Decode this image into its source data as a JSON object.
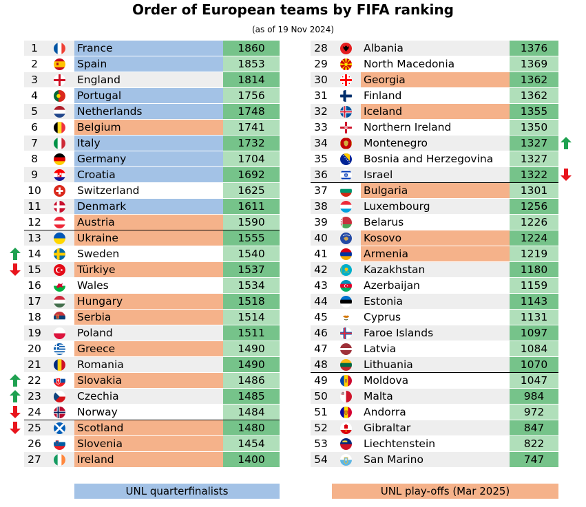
{
  "title": "Order of European teams by FIFA ranking",
  "subtitle": "(as of 19 Nov 2024)",
  "colors": {
    "row_odd": "#eeeeee",
    "row_even": "#ffffff",
    "qf": "#a3c2e6",
    "playoff": "#f5b28a",
    "pts_dark": "#76c38a",
    "pts_light": "#b0dfba",
    "arrow_up": "#1ea150",
    "arrow_down": "#e8141c"
  },
  "teams": [
    {
      "rank": "1",
      "name": "France",
      "points": "1860",
      "status": "qf",
      "flag": "france"
    },
    {
      "rank": "2",
      "name": "Spain",
      "points": "1853",
      "status": "qf",
      "flag": "spain"
    },
    {
      "rank": "3",
      "name": "England",
      "points": "1814",
      "status": "",
      "flag": "england"
    },
    {
      "rank": "4",
      "name": "Portugal",
      "points": "1756",
      "status": "qf",
      "flag": "portugal"
    },
    {
      "rank": "5",
      "name": "Netherlands",
      "points": "1748",
      "status": "qf",
      "flag": "netherlands"
    },
    {
      "rank": "6",
      "name": "Belgium",
      "points": "1741",
      "status": "playoff",
      "flag": "belgium"
    },
    {
      "rank": "7",
      "name": "Italy",
      "points": "1732",
      "status": "qf",
      "flag": "italy"
    },
    {
      "rank": "8",
      "name": "Germany",
      "points": "1704",
      "status": "qf",
      "flag": "germany"
    },
    {
      "rank": "9",
      "name": "Croatia",
      "points": "1692",
      "status": "qf",
      "flag": "croatia"
    },
    {
      "rank": "10",
      "name": "Switzerland",
      "points": "1625",
      "status": "",
      "flag": "switzerland"
    },
    {
      "rank": "11",
      "name": "Denmark",
      "points": "1611",
      "status": "qf",
      "flag": "denmark"
    },
    {
      "rank": "12",
      "name": "Austria",
      "points": "1590",
      "status": "playoff",
      "flag": "austria"
    },
    {
      "rank": "13",
      "name": "Ukraine",
      "points": "1555",
      "status": "playoff",
      "flag": "ukraine"
    },
    {
      "rank": "14",
      "name": "Sweden",
      "points": "1540",
      "status": "",
      "flag": "sweden",
      "arrow": "up"
    },
    {
      "rank": "15",
      "name": "Türkiye",
      "points": "1537",
      "status": "playoff",
      "flag": "turkiye",
      "arrow": "down"
    },
    {
      "rank": "16",
      "name": "Wales",
      "points": "1534",
      "status": "",
      "flag": "wales"
    },
    {
      "rank": "17",
      "name": "Hungary",
      "points": "1518",
      "status": "playoff",
      "flag": "hungary"
    },
    {
      "rank": "18",
      "name": "Serbia",
      "points": "1514",
      "status": "playoff",
      "flag": "serbia"
    },
    {
      "rank": "19",
      "name": "Poland",
      "points": "1511",
      "status": "",
      "flag": "poland"
    },
    {
      "rank": "20",
      "name": "Greece",
      "points": "1490",
      "status": "playoff",
      "flag": "greece"
    },
    {
      "rank": "21",
      "name": "Romania",
      "points": "1490",
      "status": "",
      "flag": "romania"
    },
    {
      "rank": "22",
      "name": "Slovakia",
      "points": "1486",
      "status": "playoff",
      "flag": "slovakia",
      "arrow": "up"
    },
    {
      "rank": "23",
      "name": "Czechia",
      "points": "1485",
      "status": "",
      "flag": "czechia",
      "arrow": "up"
    },
    {
      "rank": "24",
      "name": "Norway",
      "points": "1484",
      "status": "",
      "flag": "norway",
      "arrow": "down"
    },
    {
      "rank": "25",
      "name": "Scotland",
      "points": "1480",
      "status": "playoff",
      "flag": "scotland",
      "arrow": "down"
    },
    {
      "rank": "26",
      "name": "Slovenia",
      "points": "1454",
      "status": "playoff",
      "flag": "slovenia"
    },
    {
      "rank": "27",
      "name": "Ireland",
      "points": "1400",
      "status": "playoff",
      "flag": "ireland"
    },
    {
      "rank": "28",
      "name": "Albania",
      "points": "1376",
      "status": "",
      "flag": "albania"
    },
    {
      "rank": "29",
      "name": "North Macedonia",
      "points": "1369",
      "status": "",
      "flag": "northmacedonia"
    },
    {
      "rank": "30",
      "name": "Georgia",
      "points": "1362",
      "status": "playoff",
      "flag": "georgia"
    },
    {
      "rank": "31",
      "name": "Finland",
      "points": "1362",
      "status": "",
      "flag": "finland"
    },
    {
      "rank": "32",
      "name": "Iceland",
      "points": "1355",
      "status": "playoff",
      "flag": "iceland"
    },
    {
      "rank": "33",
      "name": "Northern Ireland",
      "points": "1350",
      "status": "",
      "flag": "northernireland"
    },
    {
      "rank": "34",
      "name": "Montenegro",
      "points": "1327",
      "status": "",
      "flag": "montenegro",
      "arrow": "up"
    },
    {
      "rank": "35",
      "name": "Bosnia and Herzegovina",
      "points": "1327",
      "status": "",
      "flag": "bosnia"
    },
    {
      "rank": "36",
      "name": "Israel",
      "points": "1322",
      "status": "",
      "flag": "israel",
      "arrow": "down"
    },
    {
      "rank": "37",
      "name": "Bulgaria",
      "points": "1301",
      "status": "playoff",
      "flag": "bulgaria"
    },
    {
      "rank": "38",
      "name": "Luxembourg",
      "points": "1256",
      "status": "",
      "flag": "luxembourg"
    },
    {
      "rank": "39",
      "name": "Belarus",
      "points": "1226",
      "status": "",
      "flag": "belarus"
    },
    {
      "rank": "40",
      "name": "Kosovo",
      "points": "1224",
      "status": "playoff",
      "flag": "kosovo"
    },
    {
      "rank": "41",
      "name": "Armenia",
      "points": "1219",
      "status": "playoff",
      "flag": "armenia"
    },
    {
      "rank": "42",
      "name": "Kazakhstan",
      "points": "1180",
      "status": "",
      "flag": "kazakhstan"
    },
    {
      "rank": "43",
      "name": "Azerbaijan",
      "points": "1159",
      "status": "",
      "flag": "azerbaijan"
    },
    {
      "rank": "44",
      "name": "Estonia",
      "points": "1143",
      "status": "",
      "flag": "estonia"
    },
    {
      "rank": "45",
      "name": "Cyprus",
      "points": "1131",
      "status": "",
      "flag": "cyprus"
    },
    {
      "rank": "46",
      "name": "Faroe Islands",
      "points": "1097",
      "status": "",
      "flag": "faroe"
    },
    {
      "rank": "47",
      "name": "Latvia",
      "points": "1084",
      "status": "",
      "flag": "latvia"
    },
    {
      "rank": "48",
      "name": "Lithuania",
      "points": "1070",
      "status": "",
      "flag": "lithuania"
    },
    {
      "rank": "49",
      "name": "Moldova",
      "points": "1047",
      "status": "",
      "flag": "moldova"
    },
    {
      "rank": "50",
      "name": "Malta",
      "points": "984",
      "status": "",
      "flag": "malta"
    },
    {
      "rank": "51",
      "name": "Andorra",
      "points": "972",
      "status": "",
      "flag": "andorra"
    },
    {
      "rank": "52",
      "name": "Gibraltar",
      "points": "847",
      "status": "",
      "flag": "gibraltar"
    },
    {
      "rank": "53",
      "name": "Liechtenstein",
      "points": "822",
      "status": "",
      "flag": "liechtenstein"
    },
    {
      "rank": "54",
      "name": "San Marino",
      "points": "747",
      "status": "",
      "flag": "sanmarino"
    }
  ],
  "legend": {
    "qf_label": "UNL quarterfinalists",
    "playoff_label": "UNL play-offs (Mar 2025)"
  }
}
